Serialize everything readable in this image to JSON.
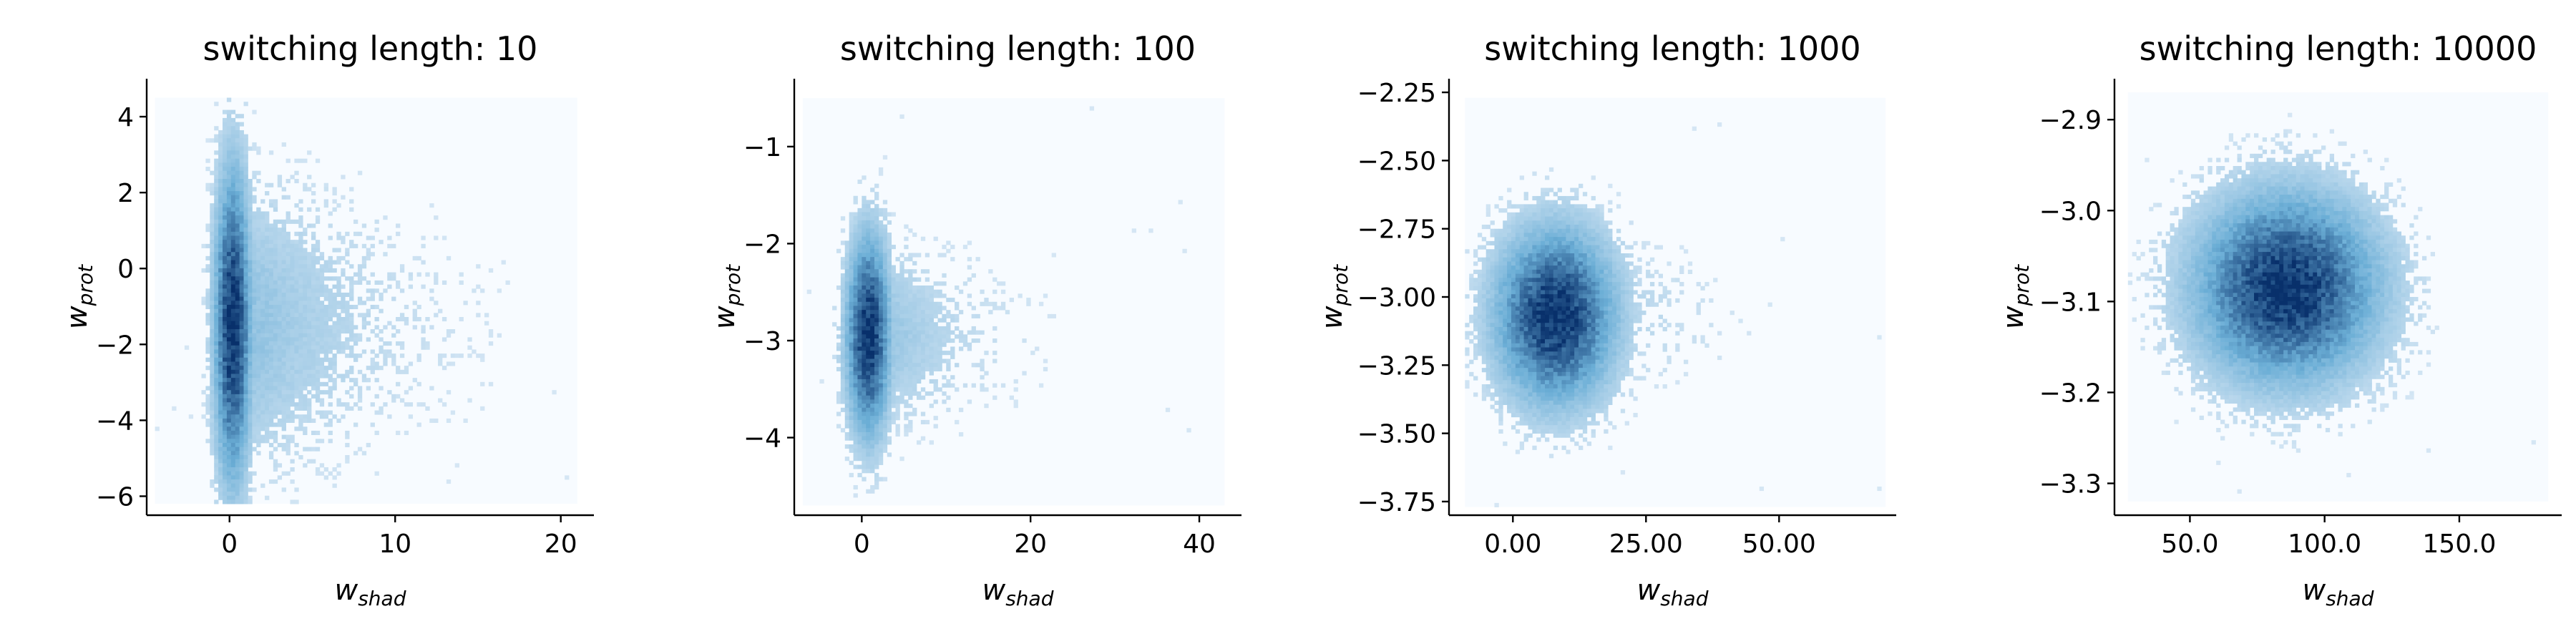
{
  "chart_data": [
    {
      "type": "heatmap",
      "title": "switching length: 10",
      "xlabel": {
        "base": "w",
        "sub": "shad"
      },
      "ylabel": {
        "base": "w",
        "sub": "prot"
      },
      "xlim": [
        -5,
        22
      ],
      "ylim": [
        -6.5,
        5
      ],
      "xticks": [
        0,
        10,
        20
      ],
      "yticks": [
        -6,
        -4,
        -2,
        0,
        2,
        4
      ],
      "data_extent": {
        "x": [
          -4.5,
          21
        ],
        "y": [
          -6.2,
          4.5
        ]
      },
      "distribution": {
        "center_x": 0.2,
        "center_y": -1.5,
        "sigma_x": 0.6,
        "sigma_y": 2.2,
        "tail_x": 4.5,
        "tail_y": 1.8
      },
      "colormap": "Blues",
      "bins": 100
    },
    {
      "type": "heatmap",
      "title": "switching length: 100",
      "xlabel": {
        "base": "w",
        "sub": "shad"
      },
      "ylabel": {
        "base": "w",
        "sub": "prot"
      },
      "xlim": [
        -8,
        45
      ],
      "ylim": [
        -4.8,
        -0.3
      ],
      "xticks": [
        0,
        20,
        40
      ],
      "yticks": [
        -4,
        -3,
        -2,
        -1
      ],
      "data_extent": {
        "x": [
          -7,
          43
        ],
        "y": [
          -4.7,
          -0.5
        ]
      },
      "distribution": {
        "center_x": 0.8,
        "center_y": -2.95,
        "sigma_x": 1.4,
        "sigma_y": 0.55,
        "tail_x": 6,
        "tail_y": 0.4
      },
      "colormap": "Blues",
      "bins": 100
    },
    {
      "type": "heatmap",
      "title": "switching length: 1000",
      "xlabel": {
        "base": "w",
        "sub": "shad"
      },
      "ylabel": {
        "base": "w",
        "sub": "prot"
      },
      "xlim": [
        -12,
        72
      ],
      "ylim": [
        -3.8,
        -2.2
      ],
      "xticks": [
        0,
        25,
        50
      ],
      "yticks": [
        -3.75,
        -3.5,
        -3.25,
        -3.0,
        -2.75,
        -2.5,
        -2.25
      ],
      "tick_format": "2dp",
      "data_extent": {
        "x": [
          -9,
          70
        ],
        "y": [
          -3.77,
          -2.27
        ]
      },
      "distribution": {
        "center_x": 8,
        "center_y": -3.07,
        "sigma_x": 6,
        "sigma_y": 0.17,
        "tail_x": 10,
        "tail_y": 0.06
      },
      "colormap": "Blues",
      "bins": 100
    },
    {
      "type": "heatmap",
      "title": "switching length: 10000",
      "xlabel": {
        "base": "w",
        "sub": "shad"
      },
      "ylabel": {
        "base": "w",
        "sub": "prot"
      },
      "xlim": [
        22,
        188
      ],
      "ylim": [
        -3.335,
        -2.855
      ],
      "xticks": [
        50,
        100,
        150
      ],
      "yticks": [
        -3.3,
        -3.2,
        -3.1,
        -3.0,
        -2.9
      ],
      "tick_format": "1dp",
      "data_extent": {
        "x": [
          27,
          183
        ],
        "y": [
          -3.32,
          -2.87
        ]
      },
      "distribution": {
        "center_x": 86,
        "center_y": -3.085,
        "sigma_x": 18,
        "sigma_y": 0.055,
        "tail_x": 0,
        "tail_y": 0
      },
      "colormap": "Blues",
      "bins": 100
    }
  ],
  "colors": {
    "background_bin": "#f7fbff",
    "low": "#deebf7",
    "mid": "#6baed6",
    "high": "#08306b"
  }
}
